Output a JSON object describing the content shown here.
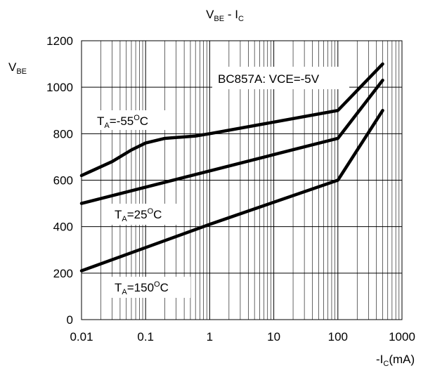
{
  "chart_data": {
    "type": "line",
    "title": {
      "main": "V",
      "sub1": "BE",
      "mid": " - I",
      "sub2": "C"
    },
    "ylabel": {
      "main": "V",
      "sub": "BE"
    },
    "xlabel": {
      "pre": "-I",
      "sub": "C",
      "post": "(mA)"
    },
    "x_scale": "log",
    "xlim": [
      0.01,
      1000
    ],
    "ylim": [
      0,
      1200
    ],
    "x_ticks": [
      0.01,
      0.1,
      1,
      10,
      100,
      1000
    ],
    "x_tick_labels": [
      "0.01",
      "0.1",
      "1",
      "10",
      "100",
      "1000"
    ],
    "y_ticks": [
      0,
      200,
      400,
      600,
      800,
      1000,
      1200
    ],
    "y_tick_labels": [
      "0",
      "200",
      "400",
      "600",
      "800",
      "1000",
      "1200"
    ],
    "grid": true,
    "series": [
      {
        "name": "TA=-55°C",
        "x": [
          0.01,
          0.03,
          0.06,
          0.1,
          0.2,
          0.6,
          1,
          10,
          100,
          500
        ],
        "y": [
          620,
          680,
          730,
          760,
          780,
          790,
          800,
          850,
          900,
          1100
        ]
      },
      {
        "name": "TA=25°C",
        "x": [
          0.01,
          0.1,
          1,
          10,
          100,
          500
        ],
        "y": [
          500,
          570,
          640,
          710,
          780,
          1030
        ]
      },
      {
        "name": "TA=150°C",
        "x": [
          0.01,
          0.1,
          1,
          10,
          100,
          500
        ],
        "y": [
          210,
          310,
          410,
          505,
          600,
          900
        ]
      }
    ],
    "annotations": [
      {
        "id": "note",
        "text": "BC857A: VCE=-5V"
      },
      {
        "id": "t-55",
        "pre": "T",
        "sub": "A",
        "mid": "=-55",
        "sup": "O",
        "post": "C"
      },
      {
        "id": "t25",
        "pre": "T",
        "sub": "A",
        "mid": "=25",
        "sup": "O",
        "post": "C"
      },
      {
        "id": "t150",
        "pre": "T",
        "sub": "A",
        "mid": "=150",
        "sup": "O",
        "post": "C"
      }
    ]
  }
}
